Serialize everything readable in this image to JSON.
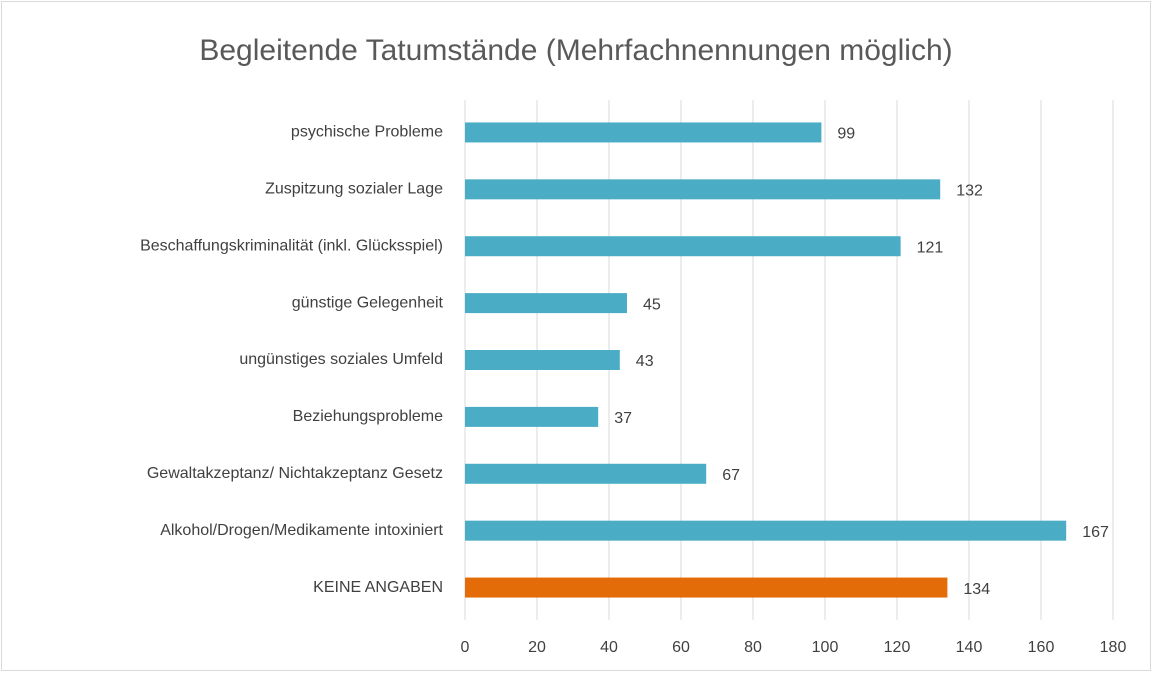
{
  "chart_data": {
    "type": "hbar",
    "title": "Begleitende Tatumstände (Mehrfachnennungen möglich)",
    "categories": [
      "psychische Probleme",
      "Zuspitzung sozialer Lage",
      "Beschaffungskriminalität (inkl. Glücksspiel)",
      "günstige Gelegenheit",
      "ungünstiges soziales Umfeld",
      "Beziehungsprobleme",
      "Gewaltakzeptanz/ Nichtakzeptanz Gesetz",
      "Alkohol/Drogen/Medikamente intoxiniert",
      "KEINE ANGABEN"
    ],
    "values": [
      99,
      132,
      121,
      45,
      43,
      37,
      67,
      167,
      134
    ],
    "colors": [
      "#4bacc6",
      "#4bacc6",
      "#4bacc6",
      "#4bacc6",
      "#4bacc6",
      "#4bacc6",
      "#4bacc6",
      "#4bacc6",
      "#e36c09"
    ],
    "xlim": [
      0,
      180
    ],
    "xticks": [
      0,
      20,
      40,
      60,
      80,
      100,
      120,
      140,
      160,
      180
    ],
    "grid": true
  }
}
